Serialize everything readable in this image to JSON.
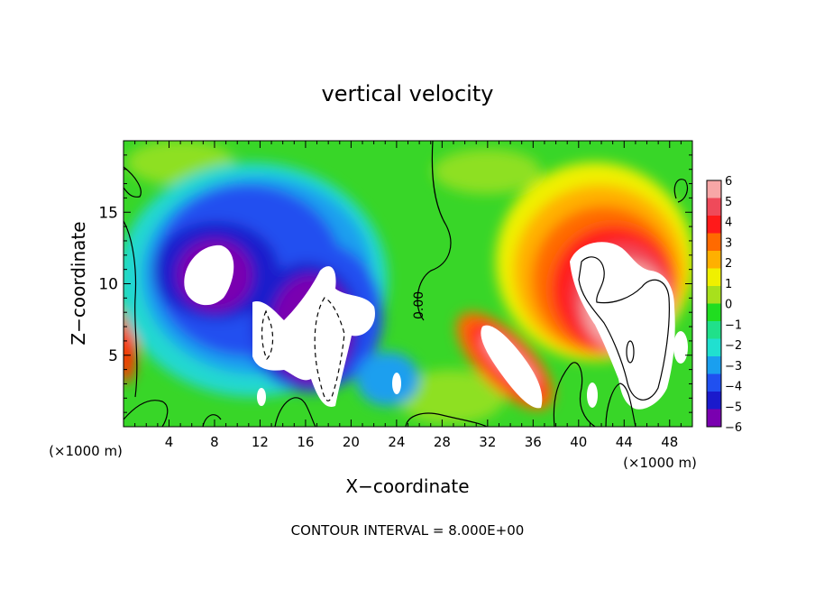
{
  "chart_data": {
    "type": "heatmap",
    "title": "vertical velocity",
    "xlabel": "X−coordinate",
    "ylabel": "Z−coordinate",
    "x_unit_left": "(×1000 m)",
    "x_unit_right": "(×1000 m)",
    "footer": "CONTOUR INTERVAL = 8.000E+00",
    "contour_label": "0.00",
    "xlim": [
      0,
      50
    ],
    "ylim": [
      0,
      20
    ],
    "x_ticks": [
      4,
      8,
      12,
      16,
      20,
      24,
      28,
      32,
      36,
      40,
      44,
      48
    ],
    "y_ticks": [
      5,
      10,
      15
    ],
    "colorbar": {
      "labels": [
        "6",
        "5",
        "4",
        "3",
        "2",
        "1",
        "0",
        "−1",
        "−2",
        "−3",
        "−4",
        "−5",
        "−6"
      ],
      "colors": [
        "#f7a7a7",
        "#ef4a5a",
        "#ff1a1a",
        "#ff6a00",
        "#ffb000",
        "#f0f000",
        "#a8e01c",
        "#20dd20",
        "#20e08a",
        "#20e0d0",
        "#1a9fef",
        "#2050f0",
        "#1a1acc",
        "#7a00b0"
      ]
    },
    "fields": [
      {
        "name": "strong-downdraft-core-left",
        "x": 7.3,
        "z": 10.8,
        "value": -6.5
      },
      {
        "name": "downdraft-broad-left",
        "x": 9,
        "z": 12,
        "value": -4.5
      },
      {
        "name": "downdraft-mid",
        "x": 16,
        "z": 13,
        "value": -4
      },
      {
        "name": "downdraft-center-low",
        "x": 17,
        "z": 6,
        "value": -6.5
      },
      {
        "name": "downdraft-column-right",
        "x": 20,
        "z": 8,
        "value": -6.5
      },
      {
        "name": "updraft-band-lower-right",
        "x": 34,
        "z": 6,
        "value": 6.5
      },
      {
        "name": "updraft-core-right",
        "x": 43,
        "z": 9,
        "value": 6.5
      },
      {
        "name": "updraft-arc-upper-right",
        "x": 40,
        "z": 15,
        "value": 4
      },
      {
        "name": "updraft-left-edge",
        "x": 0.5,
        "z": 6,
        "value": 4
      }
    ]
  }
}
